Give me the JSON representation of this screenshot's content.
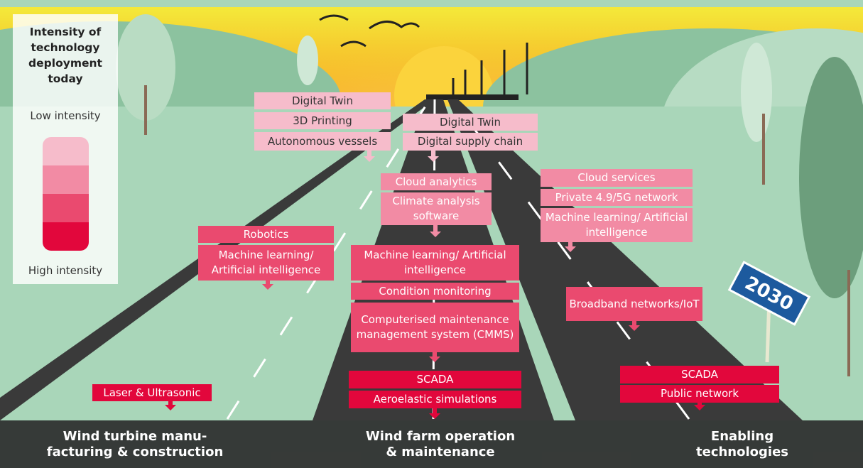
{
  "legend": {
    "title": "Intensity of technology deployment today",
    "low": "Low intensity",
    "high": "High intensity",
    "colors": [
      "#f6bccb",
      "#f28ba4",
      "#ea4a6f",
      "#e2073c"
    ]
  },
  "groups": [
    {
      "color": "#f6bccb",
      "text_color": "#333333",
      "items": [
        "Digital Twin",
        "3D Printing",
        "Autonomous vessels"
      ]
    },
    {
      "color": "#f6bccb",
      "text_color": "#333333",
      "items": [
        "Digital Twin",
        "Digital supply chain"
      ]
    },
    {
      "color": "#f28ba4",
      "text_color": "#ffffff",
      "items": [
        "Cloud analytics",
        "Climate analysis software"
      ]
    },
    {
      "color": "#f28ba4",
      "text_color": "#ffffff",
      "items": [
        "Cloud services",
        "Private 4.9/5G network",
        "Machine learning/ Artificial intelligence"
      ]
    },
    {
      "color": "#ea4a6f",
      "text_color": "#ffffff",
      "items": [
        "Robotics",
        "Machine learning/ Artificial intelligence"
      ]
    },
    {
      "color": "#ea4a6f",
      "text_color": "#ffffff",
      "items": [
        "Machine learning/ Artificial intelligence",
        "Condition monitoring",
        "Computerised maintenance management system (CMMS)"
      ]
    },
    {
      "color": "#ea4a6f",
      "text_color": "#ffffff",
      "items": [
        "Broadband networks/IoT"
      ]
    },
    {
      "color": "#e2073c",
      "text_color": "#ffffff",
      "items": [
        "Laser & Ultrasonic"
      ]
    },
    {
      "color": "#e2073c",
      "text_color": "#ffffff",
      "items": [
        "SCADA",
        "Aeroelastic simulations"
      ]
    },
    {
      "color": "#e2073c",
      "text_color": "#ffffff",
      "items": [
        "SCADA",
        "Public network"
      ]
    }
  ],
  "roads": [
    "Wind turbine  manu-\nfacturing & construction",
    "Wind farm operation\n& maintenance",
    "Enabling\ntechnologies"
  ],
  "sign": "2030"
}
